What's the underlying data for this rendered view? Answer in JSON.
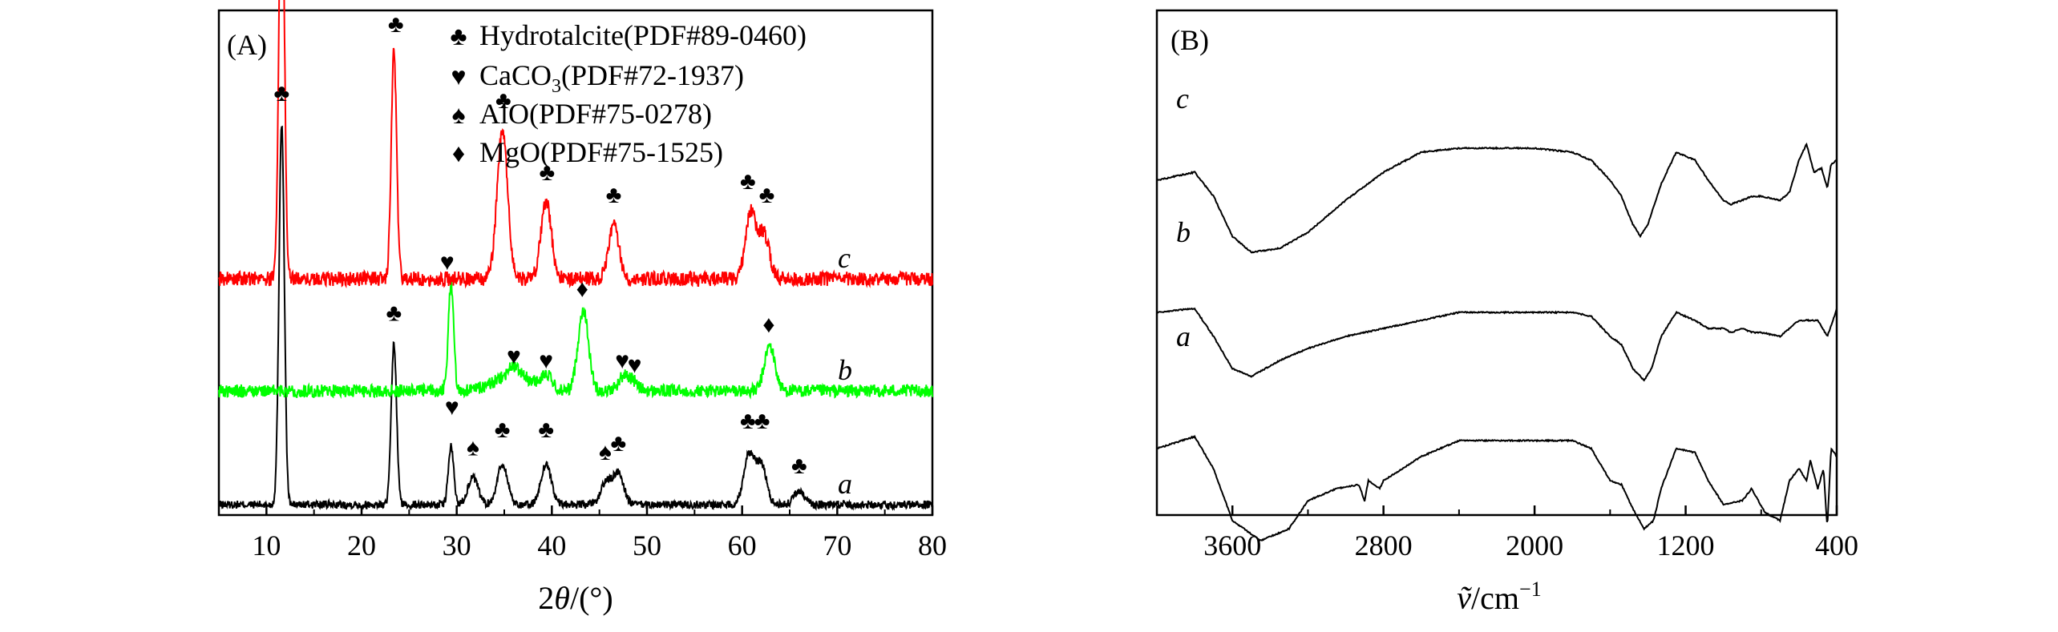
{
  "figure": {
    "panel_a_label": "(A)",
    "panel_b_label": "(B)"
  },
  "chart_data": [
    {
      "type": "line",
      "panel": "(A)",
      "xlabel_prefix": "2",
      "xlabel_symbol": "θ",
      "xlabel_suffix": "/(°)",
      "ylabel": "",
      "xlim": [
        5,
        80
      ],
      "xticks": [
        10,
        20,
        30,
        40,
        50,
        60,
        70,
        80
      ],
      "legend": {
        "position": "top-right",
        "entries": [
          {
            "icon": "club-icon",
            "glyph": "♣",
            "text": "Hydrotalcite(PDF#89-0460)"
          },
          {
            "icon": "heart-icon",
            "glyph": "♥",
            "text_main": "CaCO",
            "text_sub": "3",
            "text_tail": "(PDF#72-1937)"
          },
          {
            "icon": "spade-icon",
            "glyph": "♠",
            "text": "AlO(PDF#75-0278)"
          },
          {
            "icon": "diamond-icon",
            "glyph": "♦",
            "text": "MgO(PDF#75-1525)"
          }
        ]
      },
      "series": [
        {
          "name": "a",
          "color": "#000000",
          "peaks": [
            [
              11.6,
              0.85
            ],
            [
              23.4,
              0.36
            ],
            [
              29.4,
              0.13
            ],
            [
              31.7,
              0.06
            ],
            [
              34.8,
              0.09
            ],
            [
              39.4,
              0.09
            ],
            [
              45.7,
              0.05
            ],
            [
              47.0,
              0.07
            ],
            [
              60.7,
              0.11
            ],
            [
              62.0,
              0.09
            ],
            [
              66.0,
              0.03
            ]
          ],
          "labels": [
            {
              "g": "♣",
              "x": 11.6,
              "y": 0.9
            },
            {
              "g": "♣",
              "x": 23.4,
              "y": 0.41
            },
            {
              "g": "♥",
              "x": 29.5,
              "y": 0.2
            },
            {
              "g": "♠",
              "x": 31.7,
              "y": 0.11
            },
            {
              "g": "♣",
              "x": 34.8,
              "y": 0.15
            },
            {
              "g": "♣",
              "x": 39.4,
              "y": 0.15
            },
            {
              "g": "♠",
              "x": 45.6,
              "y": 0.1
            },
            {
              "g": "♣",
              "x": 47.0,
              "y": 0.12
            },
            {
              "g": "♣",
              "x": 60.6,
              "y": 0.17
            },
            {
              "g": "♣",
              "x": 62.1,
              "y": 0.17
            },
            {
              "g": "♣",
              "x": 66.0,
              "y": 0.07
            }
          ]
        },
        {
          "name": "b",
          "color": "#00ff00",
          "peaks": [
            [
              29.4,
              0.24
            ],
            [
              36.0,
              0.02
            ],
            [
              39.4,
              0.03
            ],
            [
              43.3,
              0.18
            ],
            [
              47.5,
              0.03
            ],
            [
              48.5,
              0.02
            ],
            [
              62.9,
              0.1
            ]
          ],
          "labels": [
            {
              "g": "♥",
              "x": 29.0,
              "y": 0.27
            },
            {
              "g": "♥",
              "x": 36.0,
              "y": 0.06
            },
            {
              "g": "♥",
              "x": 39.4,
              "y": 0.05
            },
            {
              "g": "♦",
              "x": 43.2,
              "y": 0.21
            },
            {
              "g": "♥",
              "x": 47.4,
              "y": 0.05
            },
            {
              "g": "♥",
              "x": 48.7,
              "y": 0.04
            },
            {
              "g": "♦",
              "x": 62.8,
              "y": 0.13
            }
          ]
        },
        {
          "name": "c",
          "color": "#ff0000",
          "peaks": [
            [
              11.6,
              0.98
            ],
            [
              23.4,
              0.51
            ],
            [
              34.8,
              0.33
            ],
            [
              39.4,
              0.17
            ],
            [
              46.5,
              0.12
            ],
            [
              60.9,
              0.15
            ],
            [
              62.3,
              0.1
            ]
          ],
          "labels": [
            {
              "g": "♣",
              "x": 11.9,
              "y": 0.86
            },
            {
              "g": "♣",
              "x": 23.6,
              "y": 0.55
            },
            {
              "g": "♣",
              "x": 34.9,
              "y": 0.38
            },
            {
              "g": "♣",
              "x": 39.5,
              "y": 0.22
            },
            {
              "g": "♣",
              "x": 46.5,
              "y": 0.17
            },
            {
              "g": "♣",
              "x": 60.6,
              "y": 0.2
            },
            {
              "g": "♣",
              "x": 62.6,
              "y": 0.17
            }
          ]
        }
      ]
    },
    {
      "type": "line",
      "panel": "(B)",
      "xlabel_symbol": "ṽ",
      "xlabel_unit": "/cm",
      "xlabel_exp": "−1",
      "ylabel": "",
      "xlim": [
        4000,
        400
      ],
      "xticks": [
        3600,
        2800,
        2000,
        1200,
        400
      ],
      "series": [
        {
          "name": "a",
          "points": [
            [
              4000,
              0.2
            ],
            [
              3800,
              0.17
            ],
            [
              3700,
              0.25
            ],
            [
              3600,
              0.38
            ],
            [
              3450,
              0.43
            ],
            [
              3300,
              0.4
            ],
            [
              3200,
              0.33
            ],
            [
              3050,
              0.3
            ],
            [
              2930,
              0.29
            ],
            [
              2900,
              0.33
            ],
            [
              2880,
              0.28
            ],
            [
              2820,
              0.3
            ],
            [
              2800,
              0.28
            ],
            [
              2600,
              0.22
            ],
            [
              2400,
              0.18
            ],
            [
              2000,
              0.18
            ],
            [
              1800,
              0.18
            ],
            [
              1700,
              0.2
            ],
            [
              1600,
              0.28
            ],
            [
              1540,
              0.29
            ],
            [
              1480,
              0.35
            ],
            [
              1420,
              0.4
            ],
            [
              1370,
              0.38
            ],
            [
              1330,
              0.3
            ],
            [
              1250,
              0.2
            ],
            [
              1150,
              0.21
            ],
            [
              1080,
              0.28
            ],
            [
              1000,
              0.34
            ],
            [
              900,
              0.33
            ],
            [
              850,
              0.3
            ],
            [
              780,
              0.36
            ],
            [
              700,
              0.38
            ],
            [
              650,
              0.28
            ],
            [
              600,
              0.25
            ],
            [
              560,
              0.28
            ],
            [
              540,
              0.23
            ],
            [
              500,
              0.3
            ],
            [
              470,
              0.25
            ],
            [
              450,
              0.4
            ],
            [
              430,
              0.2
            ],
            [
              400,
              0.22
            ]
          ]
        },
        {
          "name": "b",
          "points": [
            [
              4000,
              0.12
            ],
            [
              3800,
              0.11
            ],
            [
              3700,
              0.18
            ],
            [
              3600,
              0.26
            ],
            [
              3500,
              0.28
            ],
            [
              3350,
              0.24
            ],
            [
              3200,
              0.21
            ],
            [
              3000,
              0.18
            ],
            [
              2800,
              0.16
            ],
            [
              2400,
              0.12
            ],
            [
              2000,
              0.12
            ],
            [
              1800,
              0.12
            ],
            [
              1700,
              0.13
            ],
            [
              1600,
              0.18
            ],
            [
              1540,
              0.2
            ],
            [
              1480,
              0.26
            ],
            [
              1420,
              0.29
            ],
            [
              1380,
              0.26
            ],
            [
              1330,
              0.18
            ],
            [
              1250,
              0.12
            ],
            [
              1150,
              0.14
            ],
            [
              1080,
              0.16
            ],
            [
              1000,
              0.16
            ],
            [
              960,
              0.17
            ],
            [
              900,
              0.16
            ],
            [
              850,
              0.17
            ],
            [
              800,
              0.17
            ],
            [
              700,
              0.18
            ],
            [
              600,
              0.14
            ],
            [
              500,
              0.14
            ],
            [
              450,
              0.18
            ],
            [
              420,
              0.14
            ],
            [
              400,
              0.11
            ]
          ]
        },
        {
          "name": "c",
          "points": [
            [
              4000,
              0.12
            ],
            [
              3800,
              0.1
            ],
            [
              3700,
              0.16
            ],
            [
              3600,
              0.26
            ],
            [
              3500,
              0.3
            ],
            [
              3350,
              0.29
            ],
            [
              3200,
              0.25
            ],
            [
              3000,
              0.17
            ],
            [
              2800,
              0.1
            ],
            [
              2600,
              0.05
            ],
            [
              2400,
              0.04
            ],
            [
              2000,
              0.04
            ],
            [
              1800,
              0.05
            ],
            [
              1700,
              0.07
            ],
            [
              1600,
              0.12
            ],
            [
              1540,
              0.16
            ],
            [
              1480,
              0.23
            ],
            [
              1440,
              0.26
            ],
            [
              1400,
              0.23
            ],
            [
              1330,
              0.13
            ],
            [
              1250,
              0.05
            ],
            [
              1150,
              0.07
            ],
            [
              1080,
              0.12
            ],
            [
              1000,
              0.17
            ],
            [
              960,
              0.18
            ],
            [
              900,
              0.17
            ],
            [
              850,
              0.16
            ],
            [
              800,
              0.16
            ],
            [
              700,
              0.17
            ],
            [
              650,
              0.15
            ],
            [
              600,
              0.07
            ],
            [
              560,
              0.03
            ],
            [
              520,
              0.1
            ],
            [
              480,
              0.09
            ],
            [
              450,
              0.14
            ],
            [
              430,
              0.08
            ],
            [
              400,
              0.07
            ]
          ]
        }
      ]
    }
  ]
}
